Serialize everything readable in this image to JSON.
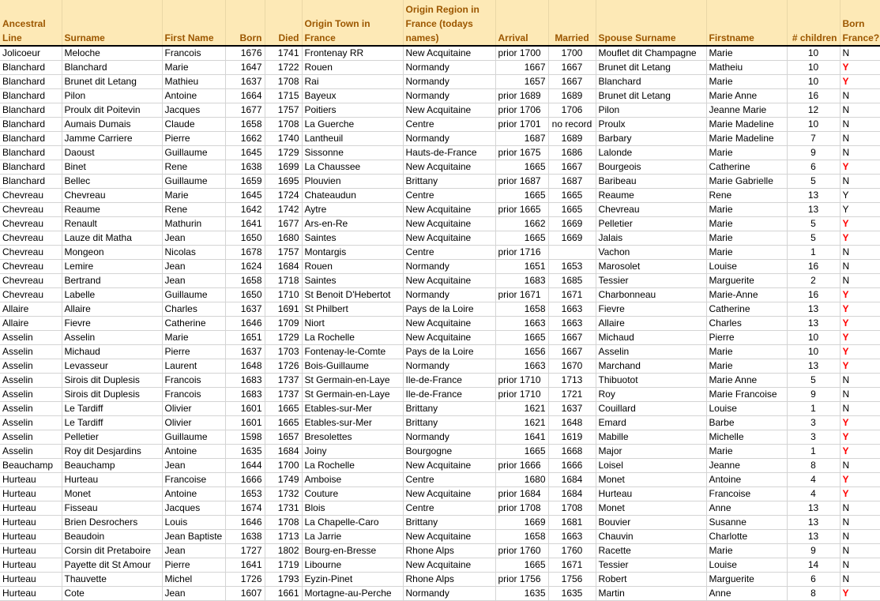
{
  "headers": [
    "Ancestral Line",
    "Surname",
    "First Name",
    "Born",
    "Died",
    "Origin Town in France",
    "Origin Region in France (todays names)",
    "Arrival",
    "Married",
    "Spouse Surname",
    "Firstname",
    "# children",
    "Born France?"
  ],
  "colors": {
    "header_bg": "#fde9b6",
    "header_text": "#9c5700",
    "born_france_yes_highlight": "#ff0000"
  },
  "rows": [
    {
      "cells": [
        "Jolicoeur",
        "Meloche",
        "Francois",
        "1676",
        "1741",
        "Frontenay RR",
        "New Acquitaine",
        "prior 1700",
        "1700",
        "Mouflet dit Champagne",
        "Marie",
        "10",
        "N"
      ],
      "red": false
    },
    {
      "cells": [
        "Blanchard",
        "Blanchard",
        "Marie",
        "1647",
        "1722",
        "Rouen",
        "Normandy",
        "1667",
        "1667",
        "Brunet dit Letang",
        "Matheiu",
        "10",
        "Y"
      ],
      "red": true
    },
    {
      "cells": [
        "Blanchard",
        "Brunet dit Letang",
        "Mathieu",
        "1637",
        "1708",
        "Rai",
        "Normandy",
        "1657",
        "1667",
        "Blanchard",
        "Marie",
        "10",
        "Y"
      ],
      "red": true
    },
    {
      "cells": [
        "Blanchard",
        "Pilon",
        "Antoine",
        "1664",
        "1715",
        "Bayeux",
        "Normandy",
        "prior 1689",
        "1689",
        "Brunet dit Letang",
        "Marie Anne",
        "16",
        "N"
      ],
      "red": false
    },
    {
      "cells": [
        "Blanchard",
        "Proulx dit Poitevin",
        "Jacques",
        "1677",
        "1757",
        "Poitiers",
        "New Acquitaine",
        "prior 1706",
        "1706",
        "Pilon",
        "Jeanne Marie",
        "12",
        "N"
      ],
      "red": false
    },
    {
      "cells": [
        "Blanchard",
        "Aumais Dumais",
        "Claude",
        "1658",
        "1708",
        "La Guerche",
        "Centre",
        "prior 1701",
        "no record",
        "Proulx",
        "Marie Madeline",
        "10",
        "N"
      ],
      "red": false
    },
    {
      "cells": [
        "Blanchard",
        "Jamme Carriere",
        "Pierre",
        "1662",
        "1740",
        "Lantheuil",
        "Normandy",
        "1687",
        "1689",
        "Barbary",
        "Marie Madeline",
        "7",
        "N"
      ],
      "red": false
    },
    {
      "cells": [
        "Blanchard",
        "Daoust",
        "Guillaume",
        "1645",
        "1729",
        "Sissonne",
        "Hauts-de-France",
        "prior 1675",
        "1686",
        "Lalonde",
        "Marie",
        "9",
        "N"
      ],
      "red": false
    },
    {
      "cells": [
        "Blanchard",
        "Binet",
        "Rene",
        "1638",
        "1699",
        "La Chaussee",
        "New Acquitaine",
        "1665",
        "1667",
        "Bourgeois",
        "Catherine",
        "6",
        "Y"
      ],
      "red": true
    },
    {
      "cells": [
        "Blanchard",
        "Bellec",
        "Guillaume",
        "1659",
        "1695",
        "Plouvien",
        "Brittany",
        "prior 1687",
        "1687",
        "Baribeau",
        "Marie Gabrielle",
        "5",
        "N"
      ],
      "red": false
    },
    {
      "cells": [
        "Chevreau",
        "Chevreau",
        "Marie",
        "1645",
        "1724",
        "Chateaudun",
        "Centre",
        "1665",
        "1665",
        "Reaume",
        "Rene",
        "13",
        "Y"
      ],
      "red": false
    },
    {
      "cells": [
        "Chevreau",
        "Reaume",
        "Rene",
        "1642",
        "1742",
        "Aytre",
        "New Acquitaine",
        "prior 1665",
        "1665",
        "Chevreau",
        "Marie",
        "13",
        "Y"
      ],
      "red": false
    },
    {
      "cells": [
        "Chevreau",
        "Renault",
        "Mathurin",
        "1641",
        "1677",
        "Ars-en-Re",
        "New Acquitaine",
        "1662",
        "1669",
        "Pelletier",
        "Marie",
        "5",
        "Y"
      ],
      "red": true
    },
    {
      "cells": [
        "Chevreau",
        "Lauze dit Matha",
        "Jean",
        "1650",
        "1680",
        "Saintes",
        "New Acquitaine",
        "1665",
        "1669",
        "Jalais",
        "Marie",
        "5",
        "Y"
      ],
      "red": true
    },
    {
      "cells": [
        "Chevreau",
        "Mongeon",
        "Nicolas",
        "1678",
        "1757",
        "Montargis",
        "Centre",
        "prior 1716",
        "",
        "Vachon",
        "Marie",
        "1",
        "N"
      ],
      "red": false
    },
    {
      "cells": [
        "Chevreau",
        "Lemire",
        "Jean",
        "1624",
        "1684",
        "Rouen",
        "Normandy",
        "1651",
        "1653",
        "Marosolet",
        "Louise",
        "16",
        "N"
      ],
      "red": false
    },
    {
      "cells": [
        "Chevreau",
        "Bertrand",
        "Jean",
        "1658",
        "1718",
        "Saintes",
        "New Acquitaine",
        "1683",
        "1685",
        "Tessier",
        "Marguerite",
        "2",
        "N"
      ],
      "red": false
    },
    {
      "cells": [
        "Chevreau",
        "Labelle",
        "Guillaume",
        "1650",
        "1710",
        "St Benoit D'Hebertot",
        "Normandy",
        "prior 1671",
        "1671",
        "Charbonneau",
        "Marie-Anne",
        "16",
        "Y"
      ],
      "red": true
    },
    {
      "cells": [
        "Allaire",
        "Allaire",
        "Charles",
        "1637",
        "1691",
        "St Philbert",
        "Pays de la Loire",
        "1658",
        "1663",
        "Fievre",
        "Catherine",
        "13",
        "Y"
      ],
      "red": true
    },
    {
      "cells": [
        "Allaire",
        "Fievre",
        "Catherine",
        "1646",
        "1709",
        "Niort",
        "New Acquitaine",
        "1663",
        "1663",
        "Allaire",
        "Charles",
        "13",
        "Y"
      ],
      "red": true
    },
    {
      "cells": [
        "Asselin",
        "Asselin",
        "Marie",
        "1651",
        "1729",
        "La Rochelle",
        "New Acquitaine",
        "1665",
        "1667",
        "Michaud",
        "Pierre",
        "10",
        "Y"
      ],
      "red": true
    },
    {
      "cells": [
        "Asselin",
        "Michaud",
        "Pierre",
        "1637",
        "1703",
        "Fontenay-le-Comte",
        "Pays de la Loire",
        "1656",
        "1667",
        "Asselin",
        "Marie",
        "10",
        "Y"
      ],
      "red": true
    },
    {
      "cells": [
        "Asselin",
        "Levasseur",
        "Laurent",
        "1648",
        "1726",
        "Bois-Guillaume",
        "Normandy",
        "1663",
        "1670",
        "Marchand",
        "Marie",
        "13",
        "Y"
      ],
      "red": true
    },
    {
      "cells": [
        "Asselin",
        "Sirois dit Duplesis",
        "Francois",
        "1683",
        "1737",
        "St Germain-en-Laye",
        "Ile-de-France",
        "prior 1710",
        "1713",
        "Thibuotot",
        "Marie Anne",
        "5",
        "N"
      ],
      "red": false
    },
    {
      "cells": [
        "Asselin",
        "Sirois dit Duplesis",
        "Francois",
        "1683",
        "1737",
        "St Germain-en-Laye",
        "Ile-de-France",
        "prior 1710",
        "1721",
        "Roy",
        "Marie Francoise",
        "9",
        "N"
      ],
      "red": false
    },
    {
      "cells": [
        "Asselin",
        "Le Tardiff",
        "Olivier",
        "1601",
        "1665",
        "Etables-sur-Mer",
        "Brittany",
        "1621",
        "1637",
        "Couillard",
        "Louise",
        "1",
        "N"
      ],
      "red": false
    },
    {
      "cells": [
        "Asselin",
        "Le Tardiff",
        "Olivier",
        "1601",
        "1665",
        "Etables-sur-Mer",
        "Brittany",
        "1621",
        "1648",
        "Emard",
        "Barbe",
        "3",
        "Y"
      ],
      "red": true
    },
    {
      "cells": [
        "Asselin",
        "Pelletier",
        "Guillaume",
        "1598",
        "1657",
        "Bresolettes",
        "Normandy",
        "1641",
        "1619",
        "Mabille",
        "Michelle",
        "3",
        "Y"
      ],
      "red": true
    },
    {
      "cells": [
        "Asselin",
        "Roy dit Desjardins",
        "Antoine",
        "1635",
        "1684",
        "Joiny",
        "Bourgogne",
        "1665",
        "1668",
        "Major",
        "Marie",
        "1",
        "Y"
      ],
      "red": true
    },
    {
      "cells": [
        "Beauchamp",
        "Beauchamp",
        "Jean",
        "1644",
        "1700",
        "La Rochelle",
        "New Acquitaine",
        "prior 1666",
        "1666",
        "Loisel",
        "Jeanne",
        "8",
        "N"
      ],
      "red": false
    },
    {
      "cells": [
        "Hurteau",
        "Hurteau",
        "Francoise",
        "1666",
        "1749",
        "Amboise",
        "Centre",
        "1680",
        "1684",
        "Monet",
        "Antoine",
        "4",
        "Y"
      ],
      "red": true
    },
    {
      "cells": [
        "Hurteau",
        "Monet",
        "Antoine",
        "1653",
        "1732",
        "Couture",
        "New Acquitaine",
        "prior 1684",
        "1684",
        "Hurteau",
        "Francoise",
        "4",
        "Y"
      ],
      "red": true
    },
    {
      "cells": [
        "Hurteau",
        "Fisseau",
        "Jacques",
        "1674",
        "1731",
        "Blois",
        "Centre",
        "prior 1708",
        "1708",
        "Monet",
        "Anne",
        "13",
        "N"
      ],
      "red": false
    },
    {
      "cells": [
        "Hurteau",
        "Brien Desrochers",
        "Louis",
        "1646",
        "1708",
        "La Chapelle-Caro",
        "Brittany",
        "1669",
        "1681",
        "Bouvier",
        "Susanne",
        "13",
        "N"
      ],
      "red": false
    },
    {
      "cells": [
        "Hurteau",
        "Beaudoin",
        "Jean Baptiste",
        "1638",
        "1713",
        "La Jarrie",
        "New Acquitaine",
        "1658",
        "1663",
        "Chauvin",
        "Charlotte",
        "13",
        "N"
      ],
      "red": false
    },
    {
      "cells": [
        "Hurteau",
        "Corsin dit Pretaboire",
        "Jean",
        "1727",
        "1802",
        "Bourg-en-Bresse",
        "Rhone Alps",
        "prior 1760",
        "1760",
        "Racette",
        "Marie",
        "9",
        "N"
      ],
      "red": false
    },
    {
      "cells": [
        "Hurteau",
        "Payette dit St Amour",
        "Pierre",
        "1641",
        "1719",
        "Libourne",
        "New Acquitaine",
        "1665",
        "1671",
        "Tessier",
        "Louise",
        "14",
        "N"
      ],
      "red": false
    },
    {
      "cells": [
        "Hurteau",
        "Thauvette",
        "Michel",
        "1726",
        "1793",
        "Eyzin-Pinet",
        "Rhone Alps",
        "prior 1756",
        "1756",
        "Robert",
        "Marguerite",
        "6",
        "N"
      ],
      "red": false
    },
    {
      "cells": [
        "Hurteau",
        "Cote",
        "Jean",
        "1607",
        "1661",
        "Mortagne-au-Perche",
        "Normandy",
        "1635",
        "1635",
        "Martin",
        "Anne",
        "8",
        "Y"
      ],
      "red": true
    }
  ]
}
